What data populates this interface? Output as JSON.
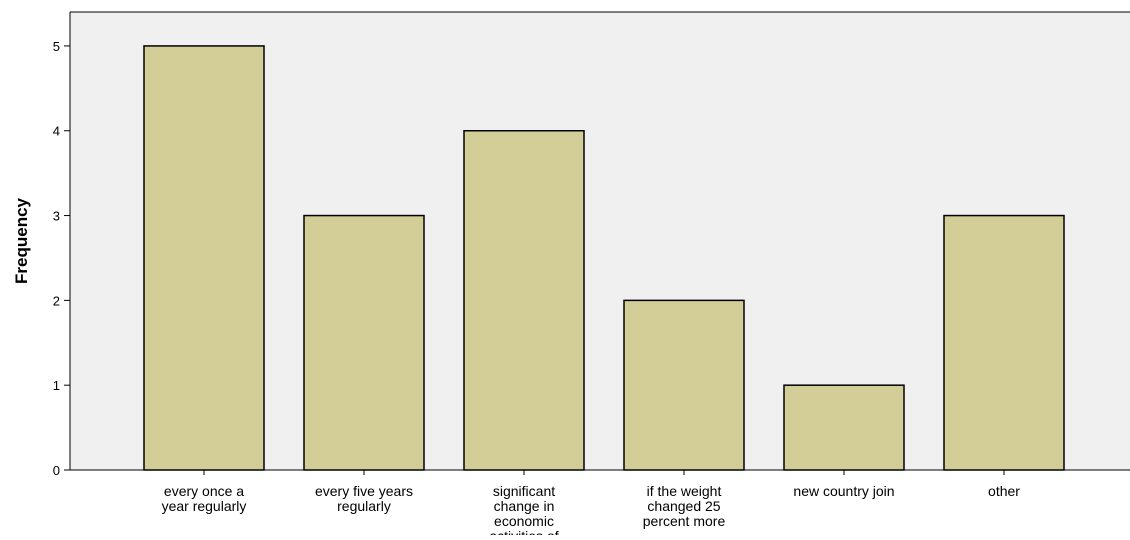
{
  "chart_data": {
    "type": "bar",
    "title": "",
    "xlabel": "",
    "ylabel": "Frequency",
    "ylim": [
      0,
      5.4
    ],
    "yticks": [
      0,
      1,
      2,
      3,
      4,
      5
    ],
    "grid": false,
    "categories": [
      "every once a year regularly",
      "every five years regularly",
      "significant change in economic activities of",
      "if the weight changed 25 percent more",
      "new country join",
      "other"
    ],
    "category_label_lines": [
      [
        "every once a",
        "year regularly"
      ],
      [
        "every five years",
        "regularly"
      ],
      [
        "significant",
        "change in",
        "economic",
        "activities of"
      ],
      [
        "if the weight",
        "changed 25",
        "percent more"
      ],
      [
        "new country join"
      ],
      [
        "other"
      ]
    ],
    "values": [
      5,
      3,
      4,
      2,
      1,
      3
    ],
    "colors": {
      "bar_fill": "#D3CD97",
      "bar_stroke": "#000000",
      "plot_background": "#F0F0F0",
      "axis": "#000000"
    }
  }
}
